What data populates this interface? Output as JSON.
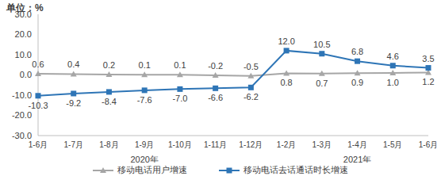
{
  "chart_data": {
    "type": "line",
    "y_label": "单位：%",
    "categories": [
      "1-6月",
      "1-7月",
      "1-8月",
      "1-9月",
      "1-10月",
      "1-11月",
      "1-12月",
      "1-2月",
      "1-3月",
      "1-4月",
      "1-5月",
      "1-6月"
    ],
    "x_groups": [
      {
        "label": "2020年",
        "count": 7
      },
      {
        "label": "2021年",
        "count": 5
      }
    ],
    "series": [
      {
        "name": "移动电话用户增速",
        "color": "#a6a6a6",
        "marker": "triangle",
        "values": [
          0.6,
          0.4,
          0.2,
          0.1,
          0.1,
          -0.2,
          -0.5,
          0.8,
          0.7,
          0.9,
          1.0,
          1.2
        ],
        "value_labels": [
          "0.6",
          "0.4",
          "0.2",
          "0.1",
          "0.1",
          "-0.2",
          "-0.5",
          "0.8",
          "0.7",
          "0.9",
          "1.0",
          "1.2"
        ]
      },
      {
        "name": "移动电话去话通话时长增速",
        "color": "#2e75b6",
        "marker": "square",
        "values": [
          -10.3,
          -9.2,
          -8.4,
          -7.6,
          -7.0,
          -6.6,
          -6.2,
          12.0,
          10.5,
          6.8,
          4.6,
          3.5
        ],
        "value_labels": [
          "-10.3",
          "-9.2",
          "-8.4",
          "-7.6",
          "-7.0",
          "-6.6",
          "-6.2",
          "12.0",
          "10.5",
          "6.8",
          "4.6",
          "3.5"
        ]
      }
    ],
    "ylim": [
      -30,
      30
    ],
    "yticks": [
      {
        "value": 30,
        "label": "30.0"
      },
      {
        "value": 20,
        "label": "20.0"
      },
      {
        "value": 10,
        "label": "10.0"
      },
      {
        "value": 0,
        "label": "0.0"
      },
      {
        "value": -10,
        "label": "-10.0"
      },
      {
        "value": -20,
        "label": "-20.0"
      },
      {
        "value": -30,
        "label": "-30.0"
      }
    ],
    "grid": false,
    "legend": "bottom",
    "data_labels": true
  }
}
